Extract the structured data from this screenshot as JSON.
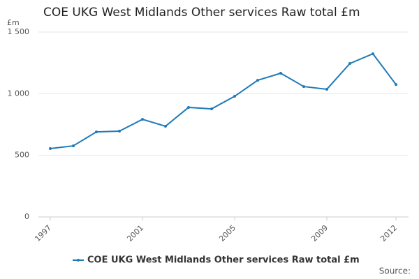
{
  "chart_data": {
    "type": "line",
    "title": "COE UKG West Midlands Other services Raw total £m",
    "y_unit": "£m",
    "source": "Source:",
    "x": [
      1997,
      1998,
      1999,
      2000,
      2001,
      2002,
      2003,
      2004,
      2005,
      2006,
      2007,
      2008,
      2009,
      2010,
      2011,
      2012
    ],
    "series": [
      {
        "name": "COE UKG West Midlands Other services Raw total £m",
        "color": "#1f7ab8",
        "values": [
          555,
          577,
          690,
          696,
          792,
          736,
          889,
          877,
          979,
          1109,
          1166,
          1058,
          1036,
          1245,
          1324,
          1075
        ]
      }
    ],
    "xlim": [
      1997,
      2012
    ],
    "xticks": [
      1997,
      2001,
      2005,
      2009,
      2012
    ],
    "ylim": [
      0,
      1500
    ],
    "yticks": [
      0,
      500,
      {
        "value": 1000,
        "label": "1 000"
      },
      {
        "value": 1500,
        "label": "1 500"
      }
    ],
    "grid": true,
    "legend": "bottom"
  }
}
